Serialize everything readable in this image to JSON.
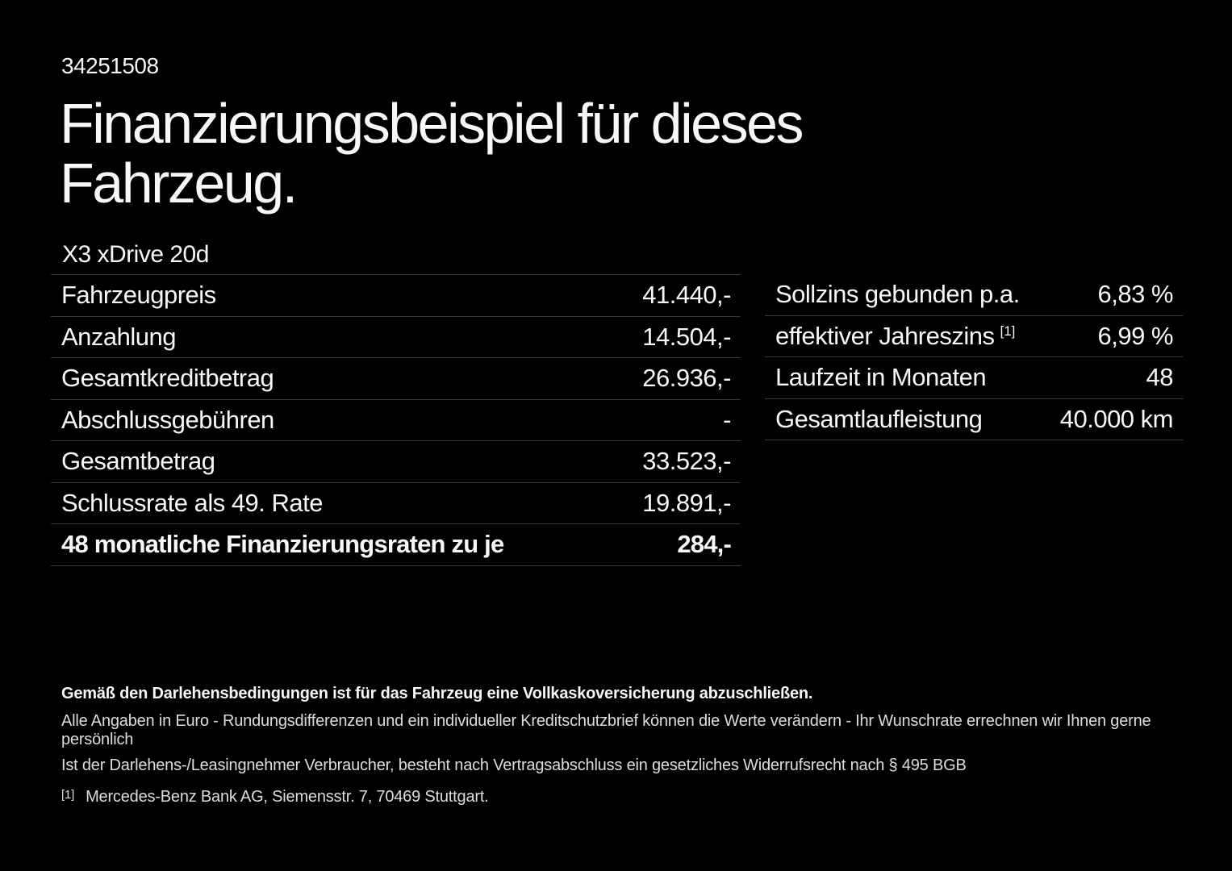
{
  "page": {
    "document_id": "34251508",
    "title": "Finanzierungsbeispiel für dieses Fahrzeug.",
    "vehicle_name": "X3 xDrive 20d"
  },
  "financing_table": {
    "rows": [
      {
        "label": "Fahrzeugpreis",
        "value": "41.440,-"
      },
      {
        "label": "Anzahlung",
        "value": "14.504,-"
      },
      {
        "label": "Gesamtkreditbetrag",
        "value": "26.936,-"
      },
      {
        "label": "Abschlussgebühren",
        "value": "-"
      },
      {
        "label": "Gesamtbetrag",
        "value": "33.523,-"
      },
      {
        "label": "Schlussrate als 49. Rate",
        "value": "19.891,-"
      },
      {
        "label": "48 monatliche Finanzierungsraten zu je",
        "value": "284,-"
      }
    ]
  },
  "conditions_table": {
    "rows": [
      {
        "label": "Sollzins gebunden p.a.",
        "value": "6,83 %"
      },
      {
        "label": "effektiver Jahreszins",
        "superscript": "[1]",
        "value": "6,99 %"
      },
      {
        "label": "Laufzeit in Monaten",
        "value": "48"
      },
      {
        "label": "Gesamtlaufleistung",
        "value": "40.000 km"
      }
    ]
  },
  "footer": {
    "insurance_note": "Gemäß den Darlehensbedingungen ist für das Fahrzeug eine Vollkaskoversicherung abzuschließen.",
    "disclaimer_line1": "Alle Angaben in Euro - Rundungsdifferenzen und ein individueller Kreditschutzbrief können die Werte verändern - Ihr Wunschrate errechnen wir Ihnen gerne persönlich",
    "disclaimer_line2": "Ist der Darlehens-/Leasingnehmer Verbraucher, besteht nach Vertragsabschluss ein gesetzliches Widerrufsrecht nach § 495 BGB",
    "footnote_marker": "[1]",
    "footnote_text": "Mercedes-Benz Bank AG, Siemensstr. 7, 70469 Stuttgart."
  },
  "colors": {
    "background": "#000000",
    "text_primary": "#f7f7f7",
    "text_secondary": "#dddddd",
    "divider": "#3a3a3a"
  }
}
